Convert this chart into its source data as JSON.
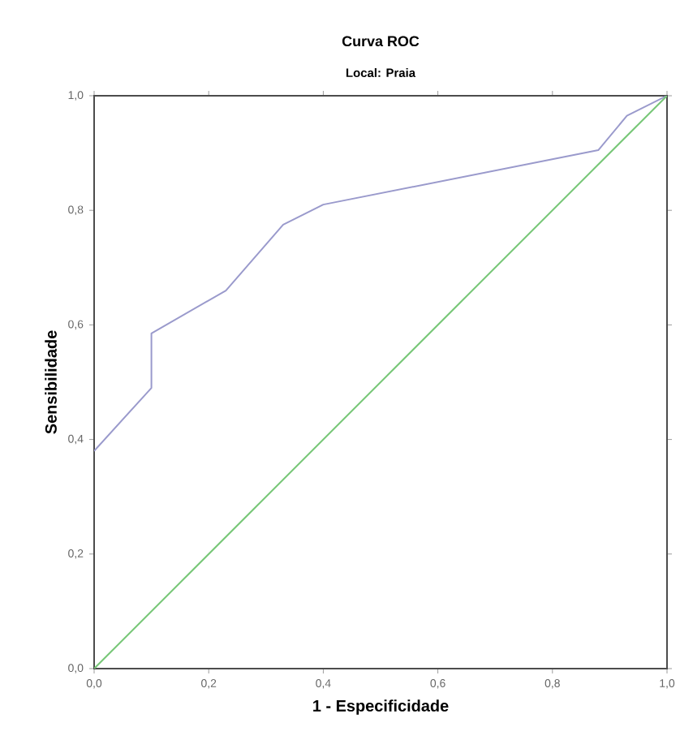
{
  "chart_data": {
    "type": "line",
    "title": "Curva ROC",
    "subtitle": "Local: Praia",
    "xlabel": "1 - Especificidade",
    "ylabel": "Sensibilidade",
    "series": [
      {
        "color": "#9a9acc",
        "x": [
          0,
          0.1,
          0.1,
          0.23,
          0.33,
          0.4,
          0.88,
          0.93,
          1
        ],
        "values": [
          0.38,
          0.49,
          0.585,
          0.66,
          0.775,
          0.81,
          0.905,
          0.965,
          1
        ]
      },
      {
        "color": "#77c777",
        "x": [
          0,
          1
        ],
        "values": [
          0,
          1
        ]
      }
    ],
    "xlim": [
      0,
      1
    ],
    "ylim": [
      0,
      1
    ],
    "xticks": [
      {
        "value": 0,
        "label": "0,0"
      },
      {
        "value": 0.2,
        "label": "0,2"
      },
      {
        "value": 0.4,
        "label": "0,4"
      },
      {
        "value": 0.6,
        "label": "0,6"
      },
      {
        "value": 0.8,
        "label": "0,8"
      },
      {
        "value": 1,
        "label": "1,0"
      }
    ],
    "yticks": [
      {
        "value": 0,
        "label": "0,0"
      },
      {
        "value": 0.2,
        "label": "0,2"
      },
      {
        "value": 0.4,
        "label": "0,4"
      },
      {
        "value": 0.6,
        "label": "0,6"
      },
      {
        "value": 0.8,
        "label": "0,8"
      },
      {
        "value": 1,
        "label": "1,0"
      }
    ],
    "marker": "none",
    "line_style": "solid"
  }
}
